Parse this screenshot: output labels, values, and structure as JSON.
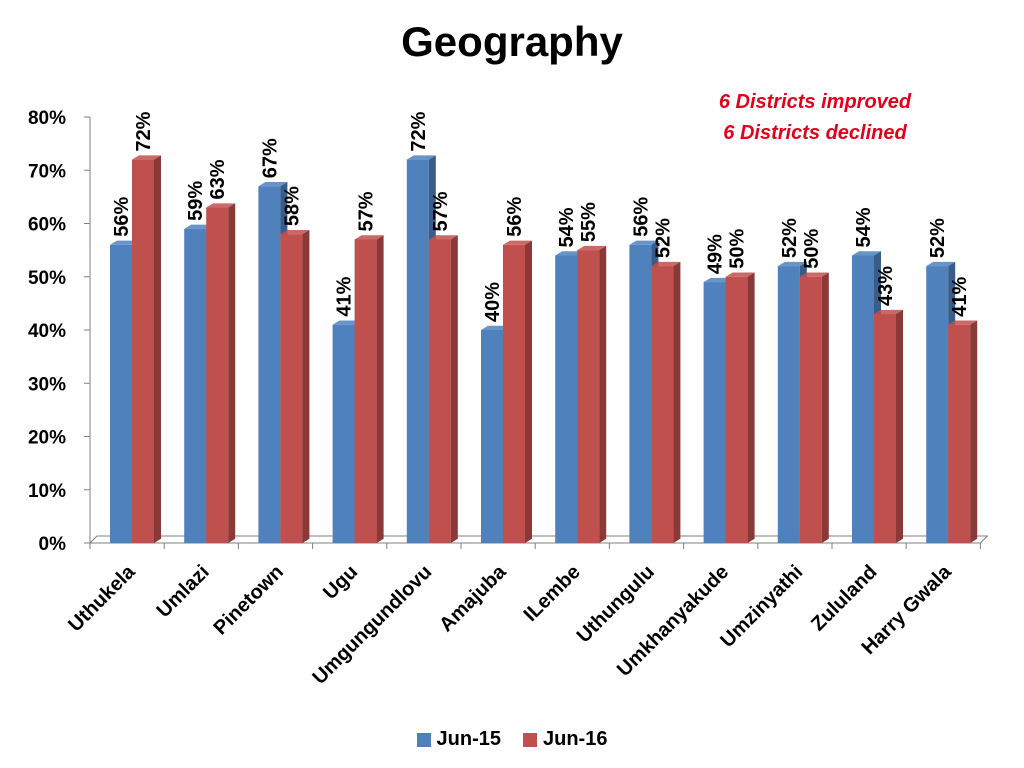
{
  "chart_data": {
    "type": "bar",
    "title": "Geography",
    "xlabel": "",
    "ylabel": "",
    "ylim": [
      0,
      80
    ],
    "yticks": [
      "0%",
      "10%",
      "20%",
      "30%",
      "40%",
      "50%",
      "60%",
      "70%",
      "80%"
    ],
    "categories": [
      "Uthukela",
      "Umlazi",
      "Pinetown",
      "Ugu",
      "Umgungundlovu",
      "Amajuba",
      "ILembe",
      "Uthungulu",
      "Umkhanyakude",
      "Umzinyathi",
      "Zululand",
      "Harry Gwala"
    ],
    "series": [
      {
        "name": "Jun-15",
        "color": "#4f81bd",
        "values": [
          56,
          59,
          67,
          41,
          72,
          40,
          54,
          56,
          49,
          52,
          54,
          52
        ],
        "labels": [
          "56%",
          "59%",
          "67%",
          "41%",
          "72%",
          "40%",
          "54%",
          "56%",
          "49%",
          "52%",
          "54%",
          "52%"
        ]
      },
      {
        "name": "Jun-16",
        "color": "#c0504d",
        "values": [
          72,
          63,
          58,
          57,
          57,
          56,
          55,
          52,
          50,
          50,
          43,
          41
        ],
        "labels": [
          "72%",
          "63%",
          "58%",
          "57%",
          "57%",
          "56%",
          "55%",
          "52%",
          "50%",
          "50%",
          "43%",
          "41%"
        ]
      }
    ],
    "annotations": [
      "6 Districts improved",
      "6 Districts declined"
    ],
    "legend_position": "bottom",
    "grid": false
  }
}
